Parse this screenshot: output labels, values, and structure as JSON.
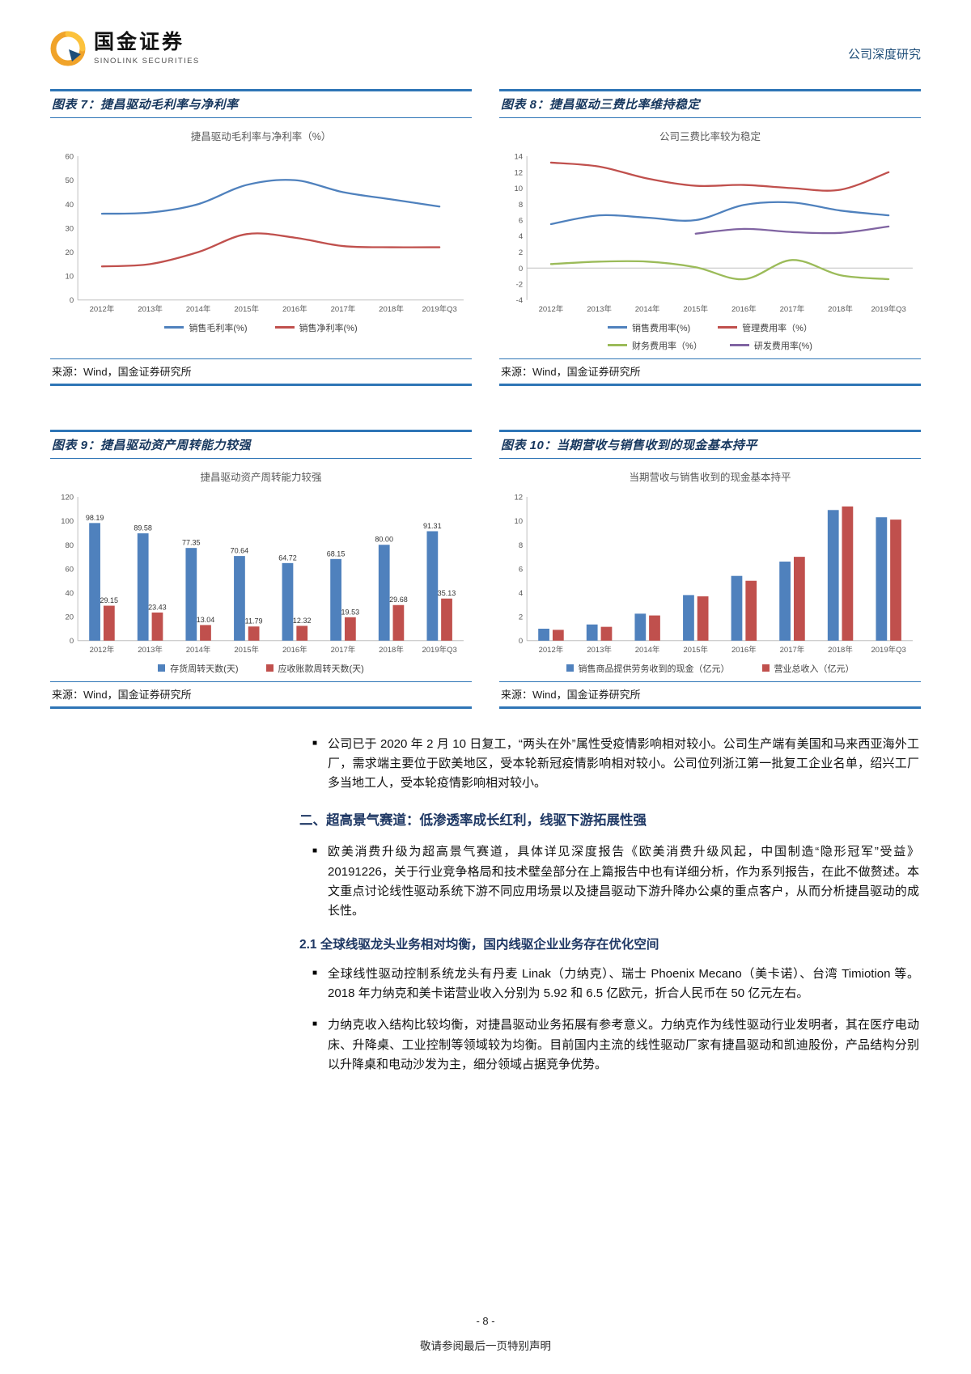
{
  "header": {
    "brand_cn": "国金证券",
    "brand_en": "SINOLINK SECURITIES",
    "report_type": "公司深度研究"
  },
  "figures": [
    {
      "caption": "图表 7：捷昌驱动毛利率与净利率",
      "source": "来源：Wind，国金证券研究所"
    },
    {
      "caption": "图表 8：捷昌驱动三费比率维持稳定",
      "source": "来源：Wind，国金证券研究所"
    },
    {
      "caption": "图表 9：捷昌驱动资产周转能力较强",
      "source": "来源：Wind，国金证券研究所"
    },
    {
      "caption": "图表 10：当期营收与销售收到的现金基本持平",
      "source": "来源：Wind，国金证券研究所"
    }
  ],
  "chart_data": [
    {
      "type": "line",
      "title": "捷昌驱动毛利率与净利率（%）",
      "categories": [
        "2012年",
        "2013年",
        "2014年",
        "2015年",
        "2016年",
        "2017年",
        "2018年",
        "2019年Q3"
      ],
      "series": [
        {
          "name": "销售毛利率(%)",
          "color": "#4f81bd",
          "values": [
            36.0,
            36.5,
            40.0,
            48.0,
            50.0,
            45.0,
            42.0,
            39.0
          ]
        },
        {
          "name": "销售净利率(%)",
          "color": "#c0504d",
          "values": [
            14.0,
            15.0,
            20.0,
            27.5,
            26.0,
            22.5,
            22.0,
            22.0
          ]
        }
      ],
      "ylim": [
        0,
        60
      ],
      "ytick": 10,
      "grid": false,
      "legend_position": "bottom"
    },
    {
      "type": "line",
      "title": "公司三费比率较为稳定",
      "categories": [
        "2012年",
        "2013年",
        "2014年",
        "2015年",
        "2016年",
        "2017年",
        "2018年",
        "2019年Q3"
      ],
      "series": [
        {
          "name": "销售费用率(%)",
          "color": "#4f81bd",
          "values": [
            5.5,
            6.6,
            6.3,
            6.0,
            7.9,
            8.2,
            7.2,
            6.6
          ]
        },
        {
          "name": "管理费用率（%）",
          "color": "#c0504d",
          "values": [
            13.2,
            12.7,
            11.2,
            10.3,
            10.4,
            10.0,
            9.8,
            12.0
          ]
        },
        {
          "name": "财务费用率（%）",
          "color": "#9bbb59",
          "values": [
            0.5,
            0.8,
            0.8,
            0.1,
            -1.4,
            1.0,
            -0.9,
            -1.4
          ]
        },
        {
          "name": "研发费用率(%)",
          "color": "#8064a2",
          "values": [
            null,
            null,
            null,
            4.3,
            4.9,
            4.5,
            4.4,
            5.2
          ]
        }
      ],
      "ylim": [
        -4,
        14
      ],
      "ytick": 2,
      "grid": false,
      "legend_position": "bottom"
    },
    {
      "type": "bar",
      "title": "捷昌驱动资产周转能力较强",
      "categories": [
        "2012年",
        "2013年",
        "2014年",
        "2015年",
        "2016年",
        "2017年",
        "2018年",
        "2019年Q3"
      ],
      "series": [
        {
          "name": "存货周转天数(天)",
          "color": "#4f81bd",
          "values": [
            98.19,
            89.58,
            77.35,
            70.64,
            64.72,
            68.15,
            80.0,
            91.31
          ]
        },
        {
          "name": "应收账款周转天数(天)",
          "color": "#c0504d",
          "values": [
            29.15,
            23.43,
            13.04,
            11.79,
            12.32,
            19.53,
            29.68,
            35.13
          ]
        }
      ],
      "ylim": [
        0,
        120
      ],
      "ytick": 20,
      "data_labels": true,
      "grid": false,
      "legend_position": "bottom"
    },
    {
      "type": "bar",
      "title": "当期营收与销售收到的现金基本持平",
      "categories": [
        "2012年",
        "2013年",
        "2014年",
        "2015年",
        "2016年",
        "2017年",
        "2018年",
        "2019年Q3"
      ],
      "series": [
        {
          "name": "销售商品提供劳务收到的现金（亿元）",
          "color": "#4f81bd",
          "values": [
            1.0,
            1.35,
            2.25,
            3.8,
            5.4,
            6.6,
            10.9,
            10.3
          ]
        },
        {
          "name": "营业总收入（亿元）",
          "color": "#c0504d",
          "values": [
            0.9,
            1.15,
            2.1,
            3.7,
            5.0,
            7.0,
            11.2,
            10.1
          ]
        }
      ],
      "ylim": [
        0,
        12
      ],
      "ytick": 2,
      "data_labels": false,
      "grid": false,
      "legend_position": "bottom"
    }
  ],
  "body": {
    "bullet_marker": "■",
    "bullet_reopen": "公司已于 2020 年 2 月 10 日复工，“两头在外”属性受疫情影响相对较小。公司生产端有美国和马来西亚海外工厂，需求端主要位于欧美地区，受本轮新冠疫情影响相对较小。公司位列浙江第一批复工企业名单，绍兴工厂多当地工人，受本轮疫情影响相对较小。",
    "section2_heading": "二、超高景气赛道：低渗透率成长红利，线驱下游拓展性强",
    "bullet_track": "欧美消费升级为超高景气赛道，具体详见深度报告《欧美消费升级风起，中国制造“隐形冠军”受益》20191226，关于行业竞争格局和技术壁垒部分在上篇报告中也有详细分析，作为系列报告，在此不做赘述。本文重点讨论线性驱动系统下游不同应用场景以及捷昌驱动下游升降办公桌的重点客户，从而分析捷昌驱动的成长性。",
    "section21_heading": "2.1 全球线驱龙头业务相对均衡，国内线驱企业业务存在优化空间",
    "bullet_leaders": "全球线性驱动控制系统龙头有丹麦 Linak（力纳克）、瑞士 Phoenix Mecano（美卡诺）、台湾 Timiotion 等。2018 年力纳克和美卡诺营业收入分别为 5.92 和 6.5 亿欧元，折合人民币在 50 亿元左右。",
    "bullet_linak": "力纳克收入结构比较均衡，对捷昌驱动业务拓展有参考意义。力纳克作为线性驱动行业发明者，其在医疗电动床、升降桌、工业控制等领域较为均衡。目前国内主流的线性驱动厂家有捷昌驱动和凯迪股份，产品结构分别以升降桌和电动沙发为主，细分领域占据竞争优势。"
  },
  "footer": {
    "page_number": "- 8 -",
    "disclaimer": "敬请参阅最后一页特别声明"
  }
}
